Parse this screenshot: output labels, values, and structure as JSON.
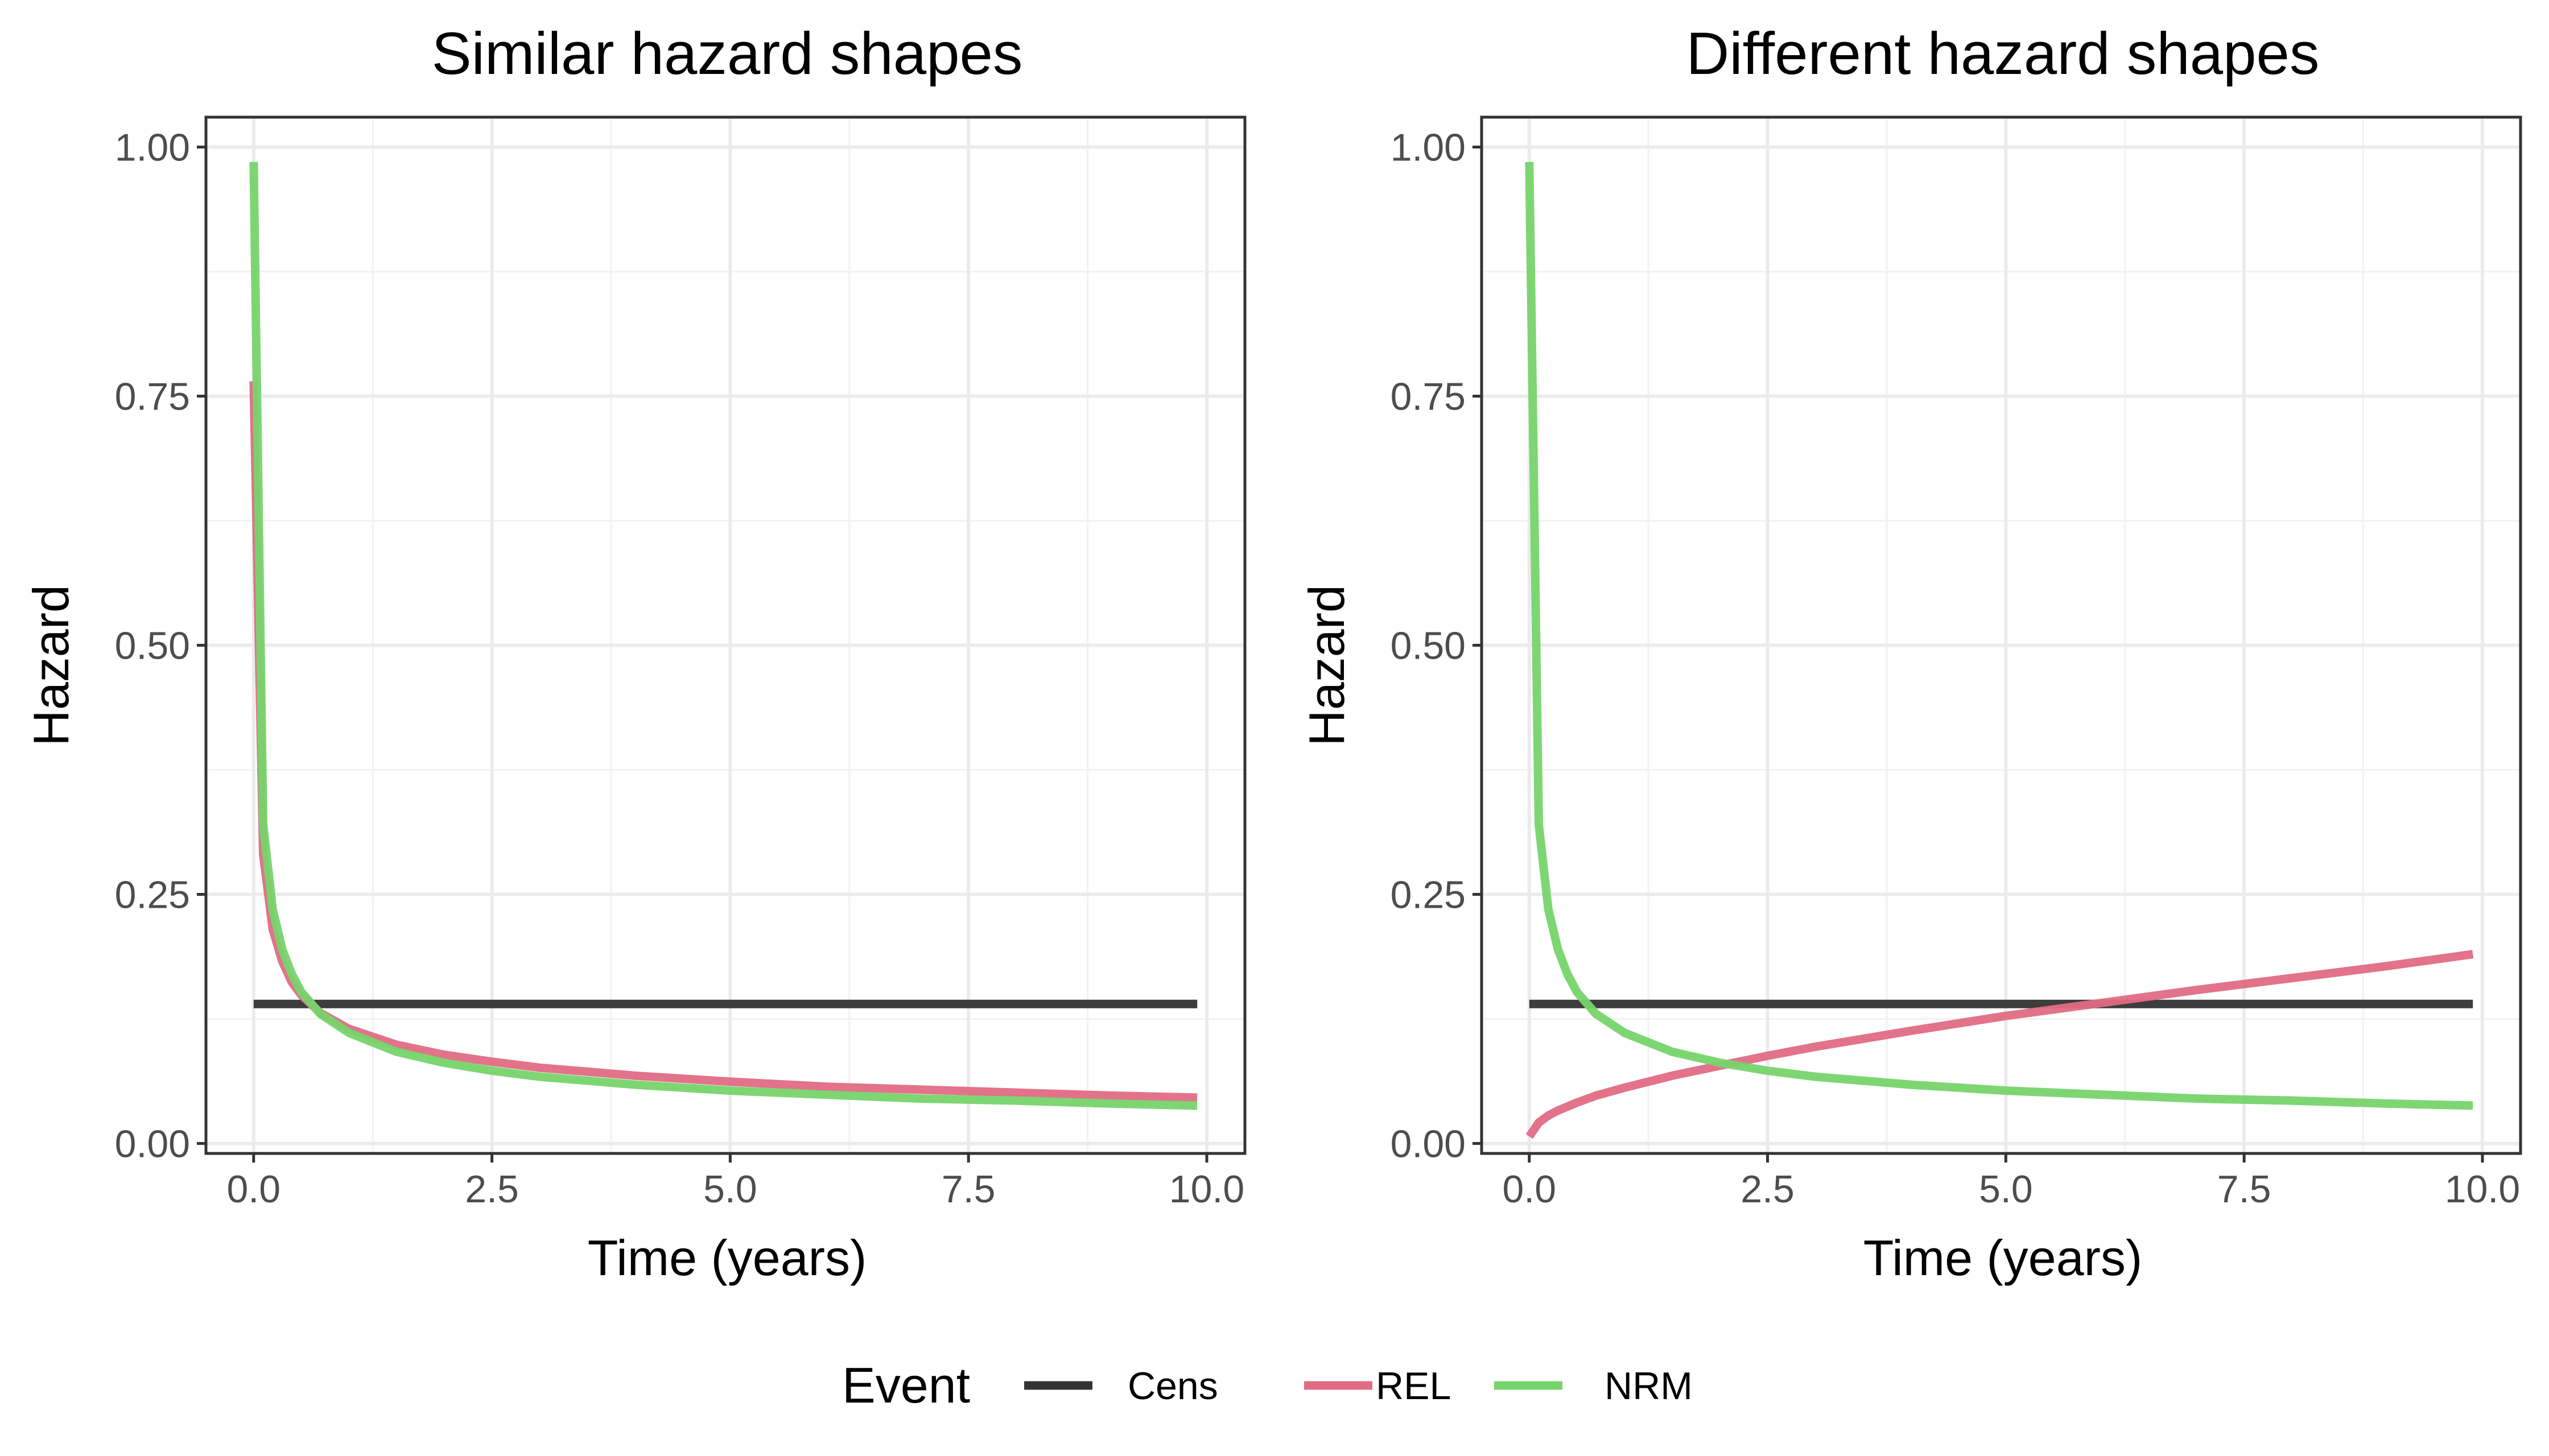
{
  "legend": {
    "title": "Event",
    "items": [
      {
        "label": "Cens",
        "color": "#333333"
      },
      {
        "label": "REL",
        "color": "#E06C84"
      },
      {
        "label": "NRM",
        "color": "#77D46C"
      }
    ]
  },
  "chart_data": [
    {
      "type": "line",
      "title": "Similar hazard shapes",
      "xlabel": "Time (years)",
      "ylabel": "Hazard",
      "xlim": [
        -0.5,
        10.4
      ],
      "ylim": [
        -0.01,
        1.03
      ],
      "xticks": [
        0,
        2.5,
        5,
        7.5,
        10
      ],
      "xtick_labels": [
        "0.0",
        "2.5",
        "5.0",
        "7.5",
        "10.0"
      ],
      "yticks": [
        0,
        0.25,
        0.5,
        0.75,
        1
      ],
      "ytick_labels": [
        "0.00",
        "0.25",
        "0.50",
        "0.75",
        "1.00"
      ],
      "grid": true,
      "legend_position": "bottom",
      "series": [
        {
          "name": "Cens",
          "color": "#333333",
          "x": [
            0,
            9.9
          ],
          "y": [
            0.14,
            0.14
          ]
        },
        {
          "name": "REL",
          "color": "#E06C84",
          "x": [
            0,
            0.1,
            0.2,
            0.3,
            0.4,
            0.5,
            0.7,
            1,
            1.5,
            2,
            2.5,
            3,
            4,
            5,
            6,
            7,
            8,
            9,
            9.9
          ],
          "y": [
            0.765,
            0.29,
            0.215,
            0.183,
            0.162,
            0.149,
            0.131,
            0.115,
            0.099,
            0.089,
            0.082,
            0.076,
            0.068,
            0.062,
            0.057,
            0.054,
            0.051,
            0.048,
            0.046
          ]
        },
        {
          "name": "NRM",
          "color": "#77D46C",
          "x": [
            0,
            0.1,
            0.2,
            0.3,
            0.4,
            0.5,
            0.7,
            1,
            1.5,
            2,
            2.5,
            3,
            4,
            5,
            6,
            7,
            8,
            9,
            9.9
          ],
          "y": [
            0.985,
            0.32,
            0.235,
            0.195,
            0.17,
            0.152,
            0.13,
            0.111,
            0.092,
            0.081,
            0.073,
            0.067,
            0.059,
            0.053,
            0.049,
            0.045,
            0.043,
            0.04,
            0.038
          ]
        }
      ]
    },
    {
      "type": "line",
      "title": "Different hazard shapes",
      "xlabel": "Time (years)",
      "ylabel": "Hazard",
      "xlim": [
        -0.5,
        10.4
      ],
      "ylim": [
        -0.01,
        1.03
      ],
      "xticks": [
        0,
        2.5,
        5,
        7.5,
        10
      ],
      "xtick_labels": [
        "0.0",
        "2.5",
        "5.0",
        "7.5",
        "10.0"
      ],
      "yticks": [
        0,
        0.25,
        0.5,
        0.75,
        1
      ],
      "ytick_labels": [
        "0.00",
        "0.25",
        "0.50",
        "0.75",
        "1.00"
      ],
      "grid": true,
      "legend_position": "bottom",
      "series": [
        {
          "name": "Cens",
          "color": "#333333",
          "x": [
            0,
            9.9
          ],
          "y": [
            0.14,
            0.14
          ]
        },
        {
          "name": "REL",
          "color": "#E06C84",
          "x": [
            0,
            0.1,
            0.2,
            0.3,
            0.5,
            0.7,
            1,
            1.5,
            2,
            2.5,
            3,
            4,
            5,
            6,
            7,
            8,
            9,
            9.9
          ],
          "y": [
            0.007,
            0.021,
            0.028,
            0.033,
            0.041,
            0.048,
            0.056,
            0.068,
            0.078,
            0.088,
            0.097,
            0.113,
            0.128,
            0.141,
            0.154,
            0.166,
            0.178,
            0.19
          ]
        },
        {
          "name": "NRM",
          "color": "#77D46C",
          "x": [
            0,
            0.1,
            0.2,
            0.3,
            0.4,
            0.5,
            0.7,
            1,
            1.5,
            2,
            2.5,
            3,
            4,
            5,
            6,
            7,
            8,
            9,
            9.9
          ],
          "y": [
            0.985,
            0.32,
            0.235,
            0.195,
            0.17,
            0.152,
            0.13,
            0.111,
            0.092,
            0.081,
            0.073,
            0.067,
            0.059,
            0.053,
            0.049,
            0.045,
            0.043,
            0.04,
            0.038
          ]
        }
      ]
    }
  ]
}
